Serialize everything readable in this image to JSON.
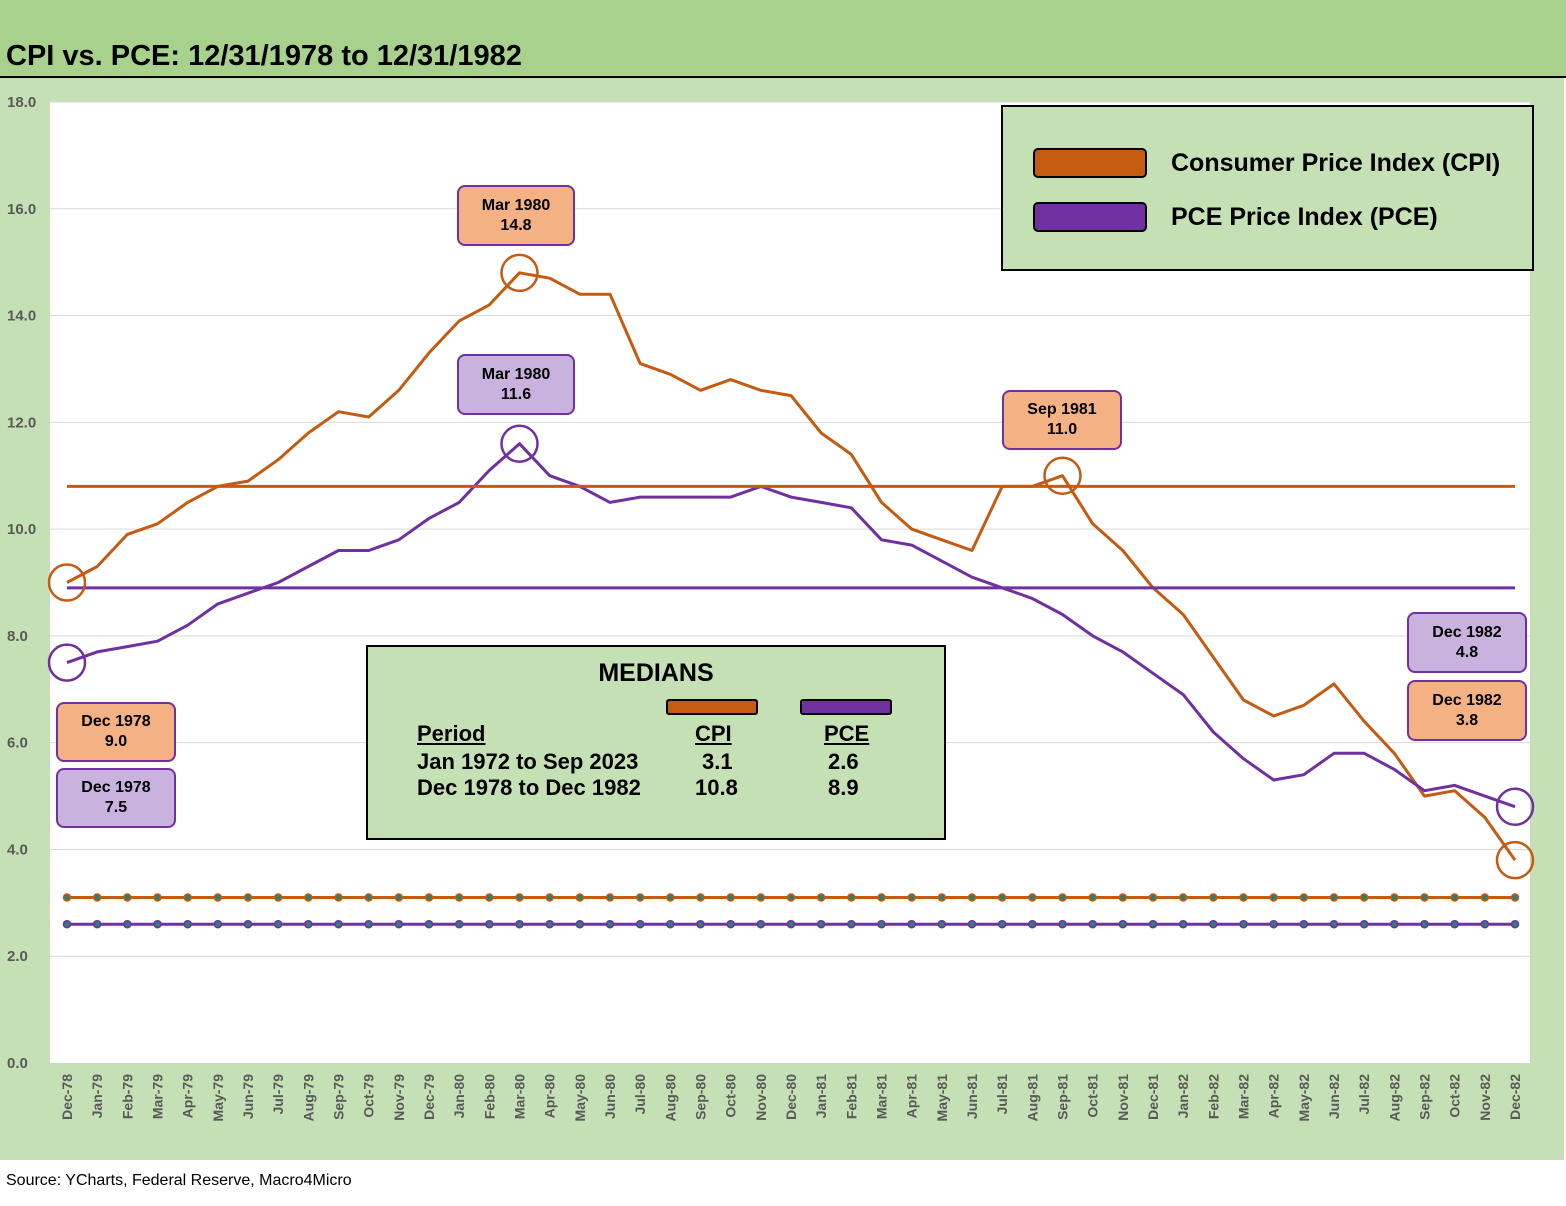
{
  "title": "CPI vs. PCE: 12/31/1978 to 12/31/1982",
  "source": "Source: YCharts, Federal Reserve, Macro4Micro",
  "legend": {
    "cpi_label": "Consumer Price Index (CPI)",
    "pce_label": "PCE Price Index (PCE)"
  },
  "medians_box": {
    "title": "MEDIANS",
    "col_period": "Period",
    "col_cpi": "CPI",
    "col_pce": "PCE",
    "rows": [
      {
        "period": "Jan 1972 to Sep 2023",
        "cpi": "3.1",
        "pce": "2.6"
      },
      {
        "period": "Dec 1978 to Dec 1982",
        "cpi": "10.8",
        "pce": "8.9"
      }
    ]
  },
  "callouts": [
    {
      "date": "Mar 1980",
      "value": "14.8",
      "series": "CPI"
    },
    {
      "date": "Mar 1980",
      "value": "11.6",
      "series": "PCE"
    },
    {
      "date": "Sep 1981",
      "value": "11.0",
      "series": "CPI"
    },
    {
      "date": "Dec 1978",
      "value": "9.0",
      "series": "CPI"
    },
    {
      "date": "Dec 1978",
      "value": "7.5",
      "series": "PCE"
    },
    {
      "date": "Dec 1982",
      "value": "4.8",
      "series": "PCE"
    },
    {
      "date": "Dec 1982",
      "value": "3.8",
      "series": "CPI"
    }
  ],
  "colors": {
    "cpi": "#c55a11",
    "pce": "#7030a0",
    "cpi_callout_fill": "#f4b183",
    "pce_callout_fill": "#c9b2de",
    "title_bar": "#a9d18e",
    "plot_bg": "#c5e0b4",
    "median_dot": "#2e7d7a"
  },
  "chart_data": {
    "type": "line",
    "ylim": [
      0,
      18
    ],
    "yticks": [
      "0.0",
      "2.0",
      "4.0",
      "6.0",
      "8.0",
      "10.0",
      "12.0",
      "14.0",
      "16.0",
      "18.0"
    ],
    "grid": true,
    "legend_position": "top-right",
    "categories": [
      "Dec-78",
      "Jan-79",
      "Feb-79",
      "Mar-79",
      "Apr-79",
      "May-79",
      "Jun-79",
      "Jul-79",
      "Aug-79",
      "Sep-79",
      "Oct-79",
      "Nov-79",
      "Dec-79",
      "Jan-80",
      "Feb-80",
      "Mar-80",
      "Apr-80",
      "May-80",
      "Jun-80",
      "Jul-80",
      "Aug-80",
      "Sep-80",
      "Oct-80",
      "Nov-80",
      "Dec-80",
      "Jan-81",
      "Feb-81",
      "Mar-81",
      "Apr-81",
      "May-81",
      "Jun-81",
      "Jul-81",
      "Aug-81",
      "Sep-81",
      "Oct-81",
      "Nov-81",
      "Dec-81",
      "Jan-82",
      "Feb-82",
      "Mar-82",
      "Apr-82",
      "May-82",
      "Jun-82",
      "Jul-82",
      "Aug-82",
      "Sep-82",
      "Oct-82",
      "Nov-82",
      "Dec-82"
    ],
    "series": [
      {
        "name": "Consumer Price Index (CPI)",
        "color": "#c55a11",
        "values": [
          9.0,
          9.3,
          9.9,
          10.1,
          10.5,
          10.8,
          10.9,
          11.3,
          11.8,
          12.2,
          12.1,
          12.6,
          13.3,
          13.9,
          14.2,
          14.8,
          14.7,
          14.4,
          14.4,
          13.1,
          12.9,
          12.6,
          12.8,
          12.6,
          12.5,
          11.8,
          11.4,
          10.5,
          10.0,
          9.8,
          9.6,
          10.8,
          10.8,
          11.0,
          10.1,
          9.6,
          8.9,
          8.4,
          7.6,
          6.8,
          6.5,
          6.7,
          7.1,
          6.4,
          5.8,
          5.0,
          5.1,
          4.6,
          3.8
        ]
      },
      {
        "name": "PCE Price Index (PCE)",
        "color": "#7030a0",
        "values": [
          7.5,
          7.7,
          7.8,
          7.9,
          8.2,
          8.6,
          8.8,
          9.0,
          9.3,
          9.6,
          9.6,
          9.8,
          10.2,
          10.5,
          11.1,
          11.6,
          11.0,
          10.8,
          10.5,
          10.6,
          10.6,
          10.6,
          10.6,
          10.8,
          10.6,
          10.5,
          10.4,
          9.8,
          9.7,
          9.4,
          9.1,
          8.9,
          8.7,
          8.4,
          8.0,
          7.7,
          7.3,
          6.9,
          6.2,
          5.7,
          5.3,
          5.4,
          5.8,
          5.8,
          5.5,
          5.1,
          5.2,
          5.0,
          4.8
        ]
      },
      {
        "name": "CPI median Dec 1978 to Dec 1982",
        "color": "#c55a11",
        "constant": 10.8
      },
      {
        "name": "PCE median Dec 1978 to Dec 1982",
        "color": "#7030a0",
        "constant": 8.9
      },
      {
        "name": "CPI median Jan 1972 to Sep 2023",
        "color": "#c55a11",
        "constant": 3.1,
        "markers": true
      },
      {
        "name": "PCE median Jan 1972 to Sep 2023",
        "color": "#7030a0",
        "constant": 2.6,
        "markers": true
      }
    ]
  }
}
